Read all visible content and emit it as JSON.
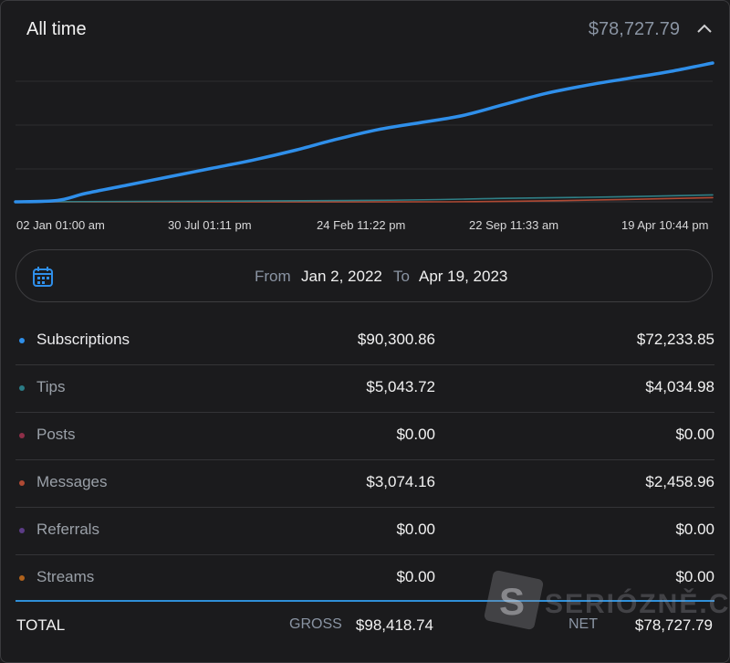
{
  "header": {
    "title": "All time",
    "amount": "$78,727.79",
    "collapse_icon": "chevron-up-icon"
  },
  "chart_data": {
    "type": "line",
    "x_ticks": [
      "02 Jan 01:00 am",
      "30 Jul 01:11 pm",
      "24 Feb 11:22 pm",
      "22 Sep 11:33 am",
      "19 Apr 10:44 pm"
    ],
    "series": [
      {
        "name": "Subscriptions",
        "color": "#2f8fea",
        "width": 3.5,
        "points": [
          [
            0,
            0
          ],
          [
            0.06,
            0.01
          ],
          [
            0.1,
            0.06
          ],
          [
            0.16,
            0.12
          ],
          [
            0.22,
            0.18
          ],
          [
            0.28,
            0.24
          ],
          [
            0.34,
            0.3
          ],
          [
            0.4,
            0.37
          ],
          [
            0.46,
            0.45
          ],
          [
            0.52,
            0.52
          ],
          [
            0.58,
            0.57
          ],
          [
            0.64,
            0.62
          ],
          [
            0.7,
            0.7
          ],
          [
            0.76,
            0.78
          ],
          [
            0.82,
            0.84
          ],
          [
            0.88,
            0.89
          ],
          [
            0.94,
            0.94
          ],
          [
            1.0,
            1.0
          ]
        ]
      },
      {
        "name": "Tips",
        "color": "#2f7f86",
        "width": 1.6,
        "points": [
          [
            0,
            0
          ],
          [
            0.5,
            0.01
          ],
          [
            0.7,
            0.025
          ],
          [
            0.85,
            0.035
          ],
          [
            1.0,
            0.05
          ]
        ]
      },
      {
        "name": "Messages",
        "color": "#b04a34",
        "width": 1.6,
        "points": [
          [
            0,
            0
          ],
          [
            0.6,
            0.0
          ],
          [
            0.8,
            0.01
          ],
          [
            1.0,
            0.03
          ]
        ]
      }
    ]
  },
  "daterange": {
    "icon": "calendar-icon",
    "from_label": "From",
    "from_value": "Jan 2, 2022",
    "to_label": "To",
    "to_value": "Apr 19, 2023"
  },
  "rows": [
    {
      "label": "Subscriptions",
      "gross": "$90,300.86",
      "net": "$72,233.85",
      "color": "#2f8fea",
      "active": true
    },
    {
      "label": "Tips",
      "gross": "$5,043.72",
      "net": "$4,034.98",
      "color": "#2b7c86",
      "active": false
    },
    {
      "label": "Posts",
      "gross": "$0.00",
      "net": "$0.00",
      "color": "#8e2f48",
      "active": false
    },
    {
      "label": "Messages",
      "gross": "$3,074.16",
      "net": "$2,458.96",
      "color": "#b04a34",
      "active": false
    },
    {
      "label": "Referrals",
      "gross": "$0.00",
      "net": "$0.00",
      "color": "#5c3c86",
      "active": false
    },
    {
      "label": "Streams",
      "gross": "$0.00",
      "net": "$0.00",
      "color": "#b0621c",
      "active": false
    }
  ],
  "total": {
    "label": "TOTAL",
    "gross_label": "GROSS",
    "gross_value": "$98,418.74",
    "net_label": "NET",
    "net_value": "$78,727.79"
  },
  "watermark": {
    "letter": "S",
    "text": "SERIÓZNĚ.CZ"
  }
}
